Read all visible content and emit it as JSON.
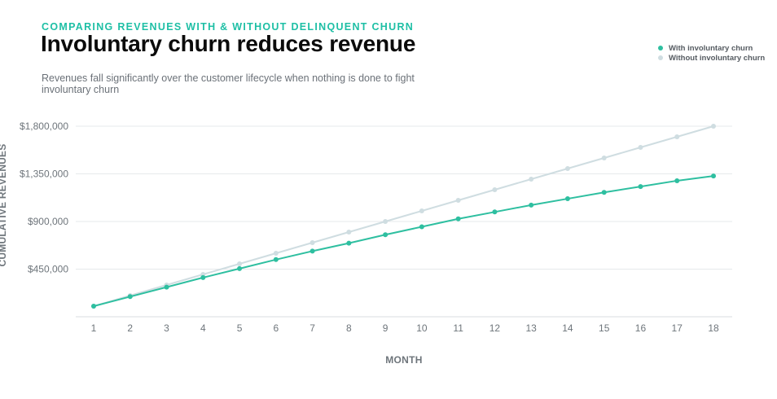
{
  "header": {
    "eyebrow": "COMPARING REVENUES WITH & WITHOUT DELINQUENT CHURN",
    "title": "Involuntary churn reduces revenue",
    "subtitle": "Revenues fall significantly over the customer lifecycle when nothing is done to fight involuntary churn"
  },
  "colors": {
    "with": "#2ebfa0",
    "without": "#cfdde1",
    "grid": "#e6e9eb"
  },
  "chart_data": {
    "type": "line",
    "xlabel": "MONTH",
    "ylabel": "CUMULATIVE REVENUES",
    "x": [
      1,
      2,
      3,
      4,
      5,
      6,
      7,
      8,
      9,
      10,
      11,
      12,
      13,
      14,
      15,
      16,
      17,
      18
    ],
    "ylim": [
      0,
      1800000
    ],
    "yticks": [
      450000,
      900000,
      1350000,
      1800000
    ],
    "ytick_labels": [
      "$450,000",
      "$900,000",
      "$1,350,000",
      "$1,800,000"
    ],
    "grid": true,
    "legend_position": "top-right",
    "series": [
      {
        "name": "With involuntary churn",
        "values": [
          100000,
          190000,
          280000,
          370000,
          455000,
          540000,
          620000,
          695000,
          775000,
          850000,
          925000,
          990000,
          1055000,
          1115000,
          1175000,
          1230000,
          1285000,
          1330000
        ]
      },
      {
        "name": "Without involuntary churn",
        "values": [
          100000,
          200000,
          300000,
          400000,
          500000,
          600000,
          700000,
          800000,
          900000,
          1000000,
          1100000,
          1200000,
          1300000,
          1400000,
          1500000,
          1600000,
          1700000,
          1800000
        ]
      }
    ]
  }
}
